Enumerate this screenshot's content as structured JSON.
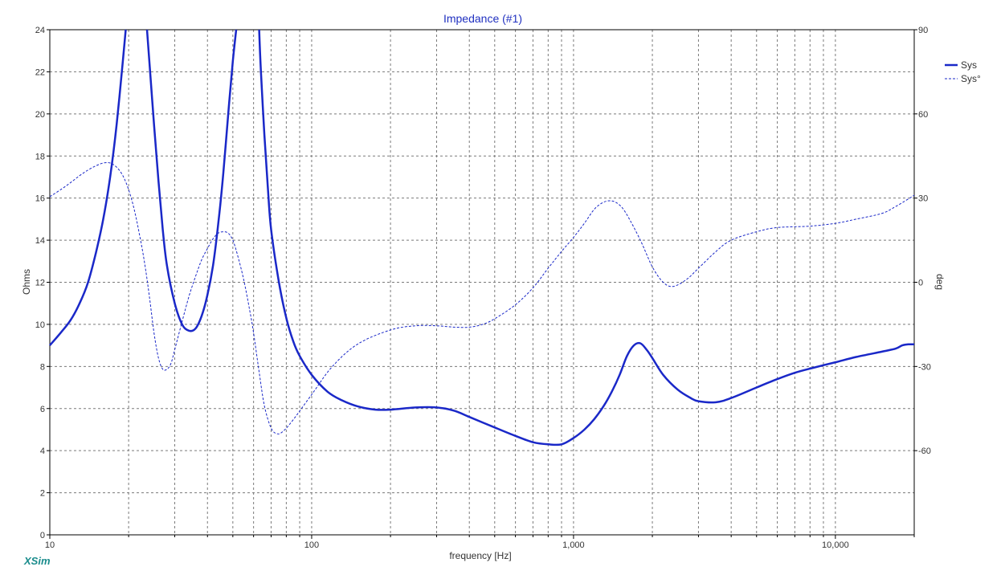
{
  "chart_data": {
    "type": "line",
    "title": "Impedance (#1)",
    "xlabel": "frequency [Hz]",
    "ylabel": "Ohms",
    "y2label": "deg",
    "xscale": "log",
    "xlim": [
      10,
      20000
    ],
    "ylim": [
      0,
      24
    ],
    "y2lim": [
      -90,
      90
    ],
    "grid": true,
    "legend_position": "top-right",
    "x_ticks": [
      {
        "value": 10,
        "label": "10"
      },
      {
        "value": 100,
        "label": "100"
      },
      {
        "value": 1000,
        "label": "1,000"
      },
      {
        "value": 10000,
        "label": "10,000"
      }
    ],
    "y_ticks": [
      "0",
      "2",
      "4",
      "6",
      "8",
      "10",
      "12",
      "14",
      "16",
      "18",
      "20",
      "22",
      "24"
    ],
    "y2_ticks": [
      "-60",
      "-30",
      "0",
      "30",
      "60",
      "90"
    ],
    "series": [
      {
        "name": "Sys",
        "axis": "left",
        "style": "solid",
        "color": "#1a28c8",
        "points": [
          [
            10,
            9.0
          ],
          [
            11,
            9.6
          ],
          [
            12,
            10.2
          ],
          [
            13,
            11.0
          ],
          [
            14,
            12.0
          ],
          [
            15,
            13.4
          ],
          [
            16,
            15.0
          ],
          [
            17,
            17.0
          ],
          [
            18,
            19.5
          ],
          [
            19,
            22.5
          ],
          [
            19.5,
            24.0
          ],
          [
            23.5,
            24.0
          ],
          [
            24,
            22.5
          ],
          [
            25,
            19.5
          ],
          [
            26,
            16.8
          ],
          [
            27,
            14.5
          ],
          [
            28,
            12.8
          ],
          [
            30,
            11.0
          ],
          [
            32,
            10.0
          ],
          [
            34,
            9.7
          ],
          [
            36,
            9.8
          ],
          [
            38,
            10.4
          ],
          [
            40,
            11.4
          ],
          [
            42,
            12.8
          ],
          [
            44,
            14.8
          ],
          [
            46,
            17.2
          ],
          [
            48,
            20.0
          ],
          [
            50,
            22.5
          ],
          [
            51.5,
            24.0
          ],
          [
            63,
            24.0
          ],
          [
            64,
            22.0
          ],
          [
            66,
            19.0
          ],
          [
            68,
            16.5
          ],
          [
            70,
            14.5
          ],
          [
            75,
            12.0
          ],
          [
            80,
            10.3
          ],
          [
            85,
            9.2
          ],
          [
            90,
            8.5
          ],
          [
            100,
            7.6
          ],
          [
            115,
            6.8
          ],
          [
            130,
            6.4
          ],
          [
            150,
            6.1
          ],
          [
            175,
            5.95
          ],
          [
            200,
            5.95
          ],
          [
            250,
            6.05
          ],
          [
            300,
            6.05
          ],
          [
            350,
            5.9
          ],
          [
            400,
            5.6
          ],
          [
            500,
            5.1
          ],
          [
            600,
            4.7
          ],
          [
            700,
            4.4
          ],
          [
            800,
            4.3
          ],
          [
            900,
            4.3
          ],
          [
            1000,
            4.6
          ],
          [
            1100,
            5.0
          ],
          [
            1200,
            5.5
          ],
          [
            1300,
            6.1
          ],
          [
            1400,
            6.8
          ],
          [
            1500,
            7.6
          ],
          [
            1600,
            8.5
          ],
          [
            1700,
            9.0
          ],
          [
            1800,
            9.1
          ],
          [
            1900,
            8.8
          ],
          [
            2000,
            8.4
          ],
          [
            2200,
            7.6
          ],
          [
            2500,
            6.9
          ],
          [
            2800,
            6.5
          ],
          [
            3000,
            6.35
          ],
          [
            3500,
            6.3
          ],
          [
            4000,
            6.5
          ],
          [
            5000,
            7.0
          ],
          [
            6000,
            7.4
          ],
          [
            7000,
            7.7
          ],
          [
            8000,
            7.9
          ],
          [
            10000,
            8.2
          ],
          [
            12000,
            8.45
          ],
          [
            15000,
            8.7
          ],
          [
            17000,
            8.85
          ],
          [
            18000,
            9.0
          ],
          [
            19000,
            9.05
          ],
          [
            20000,
            9.05
          ]
        ]
      },
      {
        "name": "Sys°",
        "axis": "right",
        "style": "dashed",
        "color": "#1a28c8",
        "points": [
          [
            10,
            30.5
          ],
          [
            11,
            33
          ],
          [
            12,
            35.5
          ],
          [
            13,
            38
          ],
          [
            14,
            40
          ],
          [
            15,
            41.5
          ],
          [
            16,
            42.5
          ],
          [
            17,
            42.5
          ],
          [
            18,
            41
          ],
          [
            19,
            38
          ],
          [
            20,
            33
          ],
          [
            21,
            26
          ],
          [
            22,
            17
          ],
          [
            23,
            7
          ],
          [
            24,
            -5
          ],
          [
            25,
            -18
          ],
          [
            26,
            -27
          ],
          [
            27,
            -31
          ],
          [
            28,
            -31
          ],
          [
            29,
            -29
          ],
          [
            30,
            -24
          ],
          [
            32,
            -14
          ],
          [
            34,
            -5
          ],
          [
            36,
            2
          ],
          [
            38,
            8
          ],
          [
            40,
            12
          ],
          [
            42,
            15.5
          ],
          [
            44,
            17.5
          ],
          [
            46,
            18
          ],
          [
            48,
            17.5
          ],
          [
            50,
            15
          ],
          [
            52,
            10
          ],
          [
            55,
            1
          ],
          [
            58,
            -10
          ],
          [
            60,
            -18
          ],
          [
            63,
            -32
          ],
          [
            66,
            -44
          ],
          [
            70,
            -52
          ],
          [
            74,
            -54
          ],
          [
            78,
            -53
          ],
          [
            85,
            -49
          ],
          [
            100,
            -40
          ],
          [
            120,
            -30
          ],
          [
            150,
            -22
          ],
          [
            200,
            -17
          ],
          [
            250,
            -15.5
          ],
          [
            300,
            -15.5
          ],
          [
            350,
            -16
          ],
          [
            400,
            -16
          ],
          [
            450,
            -15
          ],
          [
            500,
            -13
          ],
          [
            600,
            -8
          ],
          [
            700,
            -2
          ],
          [
            800,
            5
          ],
          [
            900,
            11
          ],
          [
            1000,
            16
          ],
          [
            1100,
            21
          ],
          [
            1200,
            26
          ],
          [
            1300,
            28.5
          ],
          [
            1400,
            29
          ],
          [
            1500,
            27.5
          ],
          [
            1600,
            24
          ],
          [
            1800,
            15
          ],
          [
            2000,
            5.5
          ],
          [
            2200,
            0
          ],
          [
            2400,
            -1.5
          ],
          [
            2700,
            1
          ],
          [
            3000,
            5
          ],
          [
            3500,
            11
          ],
          [
            4000,
            15
          ],
          [
            5000,
            18
          ],
          [
            6000,
            19.5
          ],
          [
            8000,
            20
          ],
          [
            10000,
            21
          ],
          [
            12000,
            22.5
          ],
          [
            15000,
            24.5
          ],
          [
            17000,
            27
          ],
          [
            20000,
            31
          ]
        ]
      }
    ]
  },
  "brand": "XSim",
  "colors": {
    "series": "#1a28c8",
    "title": "#2030c0",
    "grid": "#7a7a7a",
    "brand": "#1a8c8c"
  }
}
